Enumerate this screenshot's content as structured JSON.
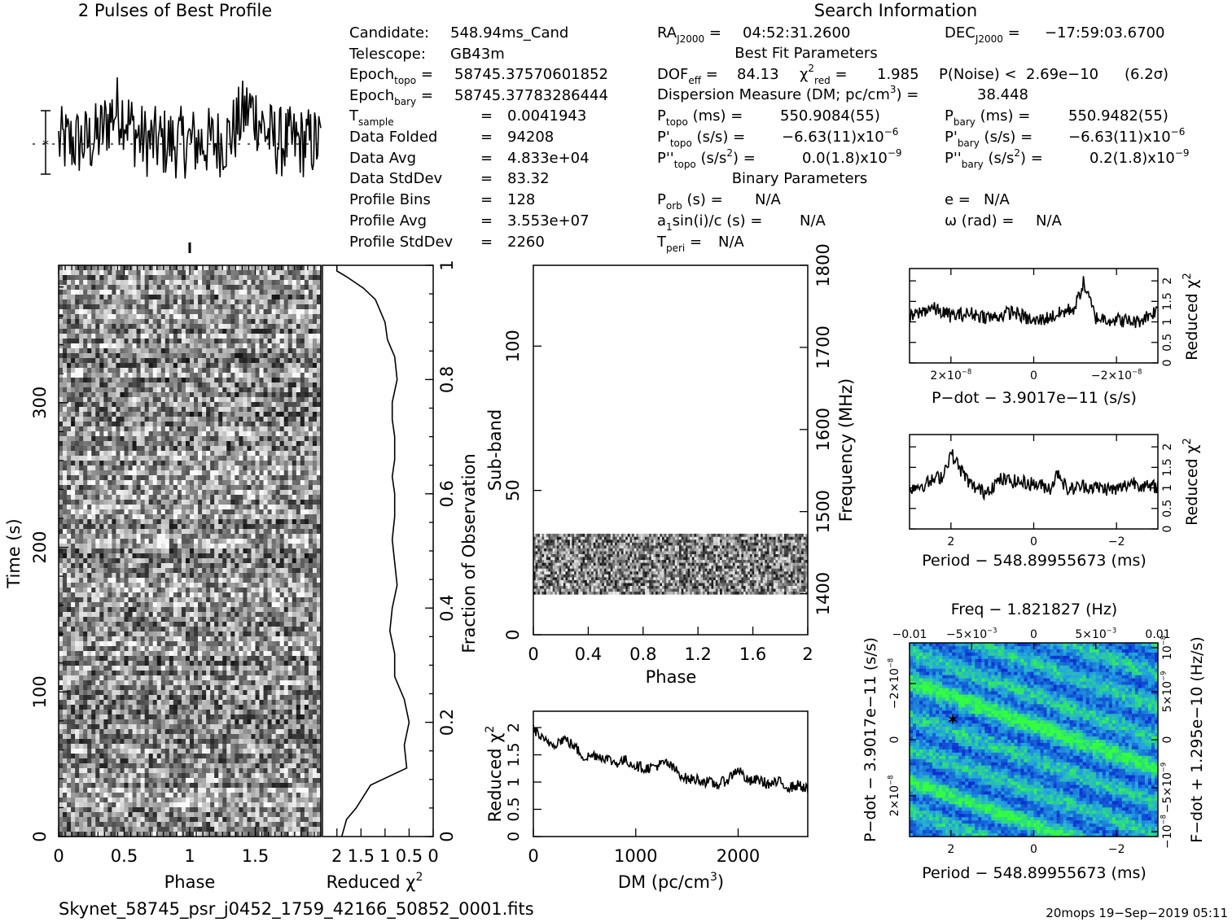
{
  "header": {
    "profile_title": "2 Pulses of Best Profile",
    "search_title": "Search Information",
    "best_fit_title": "Best Fit Parameters",
    "binary_title": "Binary Parameters"
  },
  "info": {
    "candidate": "548.94ms_Cand",
    "telescope": "GB43m",
    "epoch_topo": "58745.37570601852",
    "epoch_bary": "58745.37783286444",
    "t_sample": "0.0041943",
    "data_folded": "94208",
    "data_avg": "4.833e+04",
    "data_stddev": "83.32",
    "profile_bins": "128",
    "profile_avg": "3.553e+07",
    "profile_stddev": "2260"
  },
  "search": {
    "ra": "04:52:31.2600",
    "dec": "−17:59:03.6700",
    "dof_eff": "84.13",
    "chi2_red": "1.985",
    "p_noise": "2.69e−10",
    "sigma": "(6.2σ)",
    "dm": "38.448",
    "p_topo": "550.9084(55)",
    "p_bary": "550.9482(55)",
    "pd_topo_mant": "−6.63(11)x10",
    "pd_topo_exp": "−6",
    "pd_bary_mant": "−6.63(11)x10",
    "pd_bary_exp": "−6",
    "pdd_topo_mant": "0.0(1.8)x10",
    "pdd_topo_exp": "−9",
    "pdd_bary_mant": "0.2(1.8)x10",
    "pdd_bary_exp": "−9",
    "p_orb": "N/A",
    "a1sini": "N/A",
    "t_peri": "N/A",
    "e": "N/A",
    "omega": "N/A"
  },
  "footer": {
    "filename": "Skynet_58745_psr_j0452_1759_42166_50852_0001.fits",
    "stamp": "20mops 19−Sep−2019 05:11"
  },
  "chart_data": [
    {
      "id": "pulse-profile",
      "type": "line",
      "title": "2 Pulses of Best Profile",
      "x_range": [
        0,
        2
      ],
      "n_points": 256,
      "description_values": "noisy profile; no labeled y axis"
    },
    {
      "id": "time-phase",
      "type": "heatmap",
      "xlabel": "Phase",
      "ylabel": "Time (s)",
      "xlim": [
        0,
        2
      ],
      "ylim": [
        0,
        395
      ],
      "xticks": [
        "0",
        "0.5",
        "1",
        "1.5"
      ],
      "yticks": [
        "0",
        "100",
        "200",
        "300"
      ]
    },
    {
      "id": "time-chi2",
      "type": "line",
      "xlabel": "Reduced χ",
      "xlabel_sup": "2",
      "ylabel": "Fraction of Observation",
      "xlim": [
        2.3,
        0
      ],
      "ylim": [
        0,
        1
      ],
      "xticks": [
        "2",
        "1.5",
        "1",
        "0.5",
        "0"
      ],
      "yticks": [
        "0",
        "0.2",
        "0.4",
        "0.6",
        "0.8",
        "1"
      ],
      "x": [
        1.9,
        1.8,
        1.6,
        1.3,
        0.55,
        0.6,
        0.5,
        0.6,
        0.8,
        0.8,
        0.9,
        0.85,
        0.75,
        0.8,
        0.85,
        0.8,
        0.8,
        0.85,
        0.8,
        0.8,
        0.85,
        0.85,
        0.75,
        0.8,
        0.95,
        1.0,
        1.1,
        1.2,
        1.45,
        1.8,
        2.0,
        2.0
      ],
      "y": [
        0.0,
        0.03,
        0.05,
        0.09,
        0.12,
        0.16,
        0.2,
        0.24,
        0.28,
        0.32,
        0.36,
        0.4,
        0.44,
        0.48,
        0.52,
        0.56,
        0.6,
        0.63,
        0.66,
        0.7,
        0.73,
        0.76,
        0.8,
        0.84,
        0.87,
        0.9,
        0.92,
        0.94,
        0.96,
        0.98,
        0.99,
        1.0
      ]
    },
    {
      "id": "subband-phase",
      "type": "heatmap",
      "xlabel": "Phase",
      "ylabel": "Sub-band",
      "y2label": "Frequency (MHz)",
      "xlim": [
        0,
        2
      ],
      "ylim": [
        0,
        128
      ],
      "y2lim": [
        1350,
        1800
      ],
      "xticks": [
        "0",
        "0.4",
        "0.8",
        "1.2",
        "1.6",
        "2"
      ],
      "yticks": [
        "0",
        "50",
        "100"
      ],
      "y2ticks": [
        "1400",
        "1500",
        "1600",
        "1700",
        "1800"
      ],
      "data_band": [
        14,
        35
      ]
    },
    {
      "id": "dm-chi2",
      "type": "line",
      "xlabel": "DM (pc/cm",
      "xlabel_sup": "3",
      "xlabel_end": ")",
      "ylabel": "Reduced χ",
      "ylabel_sup": "2",
      "xlim": [
        0,
        2680
      ],
      "ylim": [
        0,
        2.3
      ],
      "xticks": [
        "0",
        "1000",
        "2000"
      ],
      "yticks": [
        "0",
        "0.5",
        "1",
        "1.5",
        "2"
      ],
      "x": [
        0,
        100,
        200,
        300,
        400,
        500,
        600,
        700,
        800,
        900,
        1000,
        1100,
        1200,
        1300,
        1400,
        1500,
        1600,
        1700,
        1800,
        1900,
        2000,
        2100,
        2200,
        2300,
        2400,
        2500,
        2600,
        2680
      ],
      "y": [
        2.0,
        1.75,
        1.7,
        1.8,
        1.65,
        1.45,
        1.5,
        1.45,
        1.35,
        1.4,
        1.3,
        1.25,
        1.3,
        1.35,
        1.2,
        1.05,
        1.05,
        1.0,
        0.95,
        1.05,
        1.25,
        1.0,
        1.05,
        0.95,
        1.0,
        0.9,
        0.95,
        0.85
      ]
    },
    {
      "id": "pdot-chi2",
      "type": "line",
      "xlabel": "P−dot − 3.9017e−11 (s/s)",
      "ylabel": "Reduced χ",
      "ylabel_sup": "2",
      "xlim": [
        3e-08,
        -3e-08
      ],
      "ylim": [
        0,
        2.3
      ],
      "xticks": [
        "2×10",
        "0",
        "−2×10"
      ],
      "xticks_sup": [
        "−8",
        "",
        "−8"
      ],
      "yticks": [
        "0",
        "0.5",
        "1",
        "1.5",
        "2"
      ],
      "x": [
        3e-08,
        2.5e-08,
        2e-08,
        1.5e-08,
        1e-08,
        5e-09,
        0,
        -5e-09,
        -1e-08,
        -1.2e-08,
        -1.5e-08,
        -2e-08,
        -2.5e-08,
        -3e-08
      ],
      "y": [
        1.1,
        1.35,
        1.15,
        1.2,
        1.1,
        1.25,
        1.0,
        1.15,
        1.35,
        1.95,
        1.1,
        1.05,
        1.0,
        1.3
      ]
    },
    {
      "id": "period-chi2",
      "type": "line",
      "xlabel": "Period − 548.89955673 (ms)",
      "ylabel": "Reduced χ",
      "ylabel_sup": "2",
      "xlim": [
        3,
        -3
      ],
      "ylim": [
        0,
        2.3
      ],
      "xticks": [
        "2",
        "0",
        "−2"
      ],
      "yticks": [
        "0",
        "0.5",
        "1",
        "1.5",
        "2"
      ],
      "x": [
        3,
        2.6,
        2.2,
        2.0,
        1.8,
        1.5,
        1.2,
        0.8,
        0.4,
        0,
        -0.4,
        -0.6,
        -0.8,
        -1.2,
        -1.6,
        -2.0,
        -2.4,
        -2.8,
        -3
      ],
      "y": [
        1.0,
        1.1,
        1.3,
        1.85,
        1.5,
        1.05,
        0.9,
        1.2,
        1.15,
        1.1,
        1.0,
        1.4,
        0.95,
        1.05,
        1.0,
        0.95,
        1.15,
        1.0,
        1.05
      ]
    },
    {
      "id": "p-pdot-plane",
      "type": "heatmap",
      "xlabel": "Period − 548.89955673 (ms)",
      "ylabel": "P−dot − 3.9017e−11 (s/s)",
      "x2label": "Freq − 1.821827 (Hz)",
      "y2label": "F−dot + 1.295e−10 (Hz/s)",
      "xlim": [
        3,
        -3
      ],
      "x2lim": [
        -0.01,
        0.01
      ],
      "xticks": [
        "2",
        "0",
        "−2"
      ],
      "x2ticks": [
        "−0.01",
        "−5×10",
        "0",
        "5×10",
        "0.01"
      ],
      "x2ticks_sup": [
        "",
        "−3",
        "",
        "−3",
        ""
      ],
      "yticks": [
        "−2×10",
        "0",
        "2×10"
      ],
      "yticks_sup": [
        "−8",
        "",
        "−8"
      ],
      "y2ticks": [
        "10",
        "5×10",
        "0",
        "−5×10",
        "−10"
      ],
      "y2ticks_sup": [
        "−8",
        "−9",
        "",
        "−9",
        "−8"
      ],
      "best_marker": {
        "x": 2.0,
        "y": -8.5e-09
      },
      "colors": {
        "low": "#0b2fd0",
        "mid": "#23a7e0",
        "high": "#34ff3c"
      }
    }
  ]
}
